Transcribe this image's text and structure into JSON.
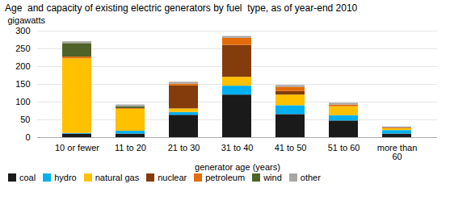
{
  "chart_data": {
    "type": "bar",
    "stacked": true,
    "title": "Age  and capacity of existing electric generators by fuel  type, as of year-end 2010",
    "ylabel": "gigawatts",
    "xlabel": "generator age (years)",
    "categories": [
      "10 or fewer",
      "11 to 20",
      "21 to 30",
      "31 to 40",
      "41 to 50",
      "51 to 60",
      "more than\n60"
    ],
    "series": [
      {
        "name": "coal",
        "color": "#1a1a1a",
        "values": [
          10,
          10,
          63,
          120,
          65,
          47,
          10
        ]
      },
      {
        "name": "hydro",
        "color": "#00b0f0",
        "values": [
          2,
          8,
          8,
          25,
          25,
          15,
          10
        ]
      },
      {
        "name": "natural gas",
        "color": "#ffc000",
        "values": [
          210,
          62,
          10,
          25,
          30,
          25,
          5
        ]
      },
      {
        "name": "nuclear",
        "color": "#843c0c",
        "values": [
          0,
          0,
          65,
          90,
          10,
          0,
          0
        ]
      },
      {
        "name": "petroleum",
        "color": "#e36c09",
        "values": [
          5,
          2,
          5,
          20,
          12,
          5,
          2
        ]
      },
      {
        "name": "wind",
        "color": "#4f6228",
        "values": [
          38,
          5,
          0,
          0,
          0,
          0,
          0
        ]
      },
      {
        "name": "other",
        "color": "#a6a6a6",
        "values": [
          5,
          5,
          5,
          5,
          5,
          5,
          3
        ]
      }
    ],
    "ylim": [
      0,
      300
    ],
    "yticks": [
      0,
      50,
      100,
      150,
      200,
      250,
      300
    ],
    "grid": true,
    "legend": "bottom"
  }
}
